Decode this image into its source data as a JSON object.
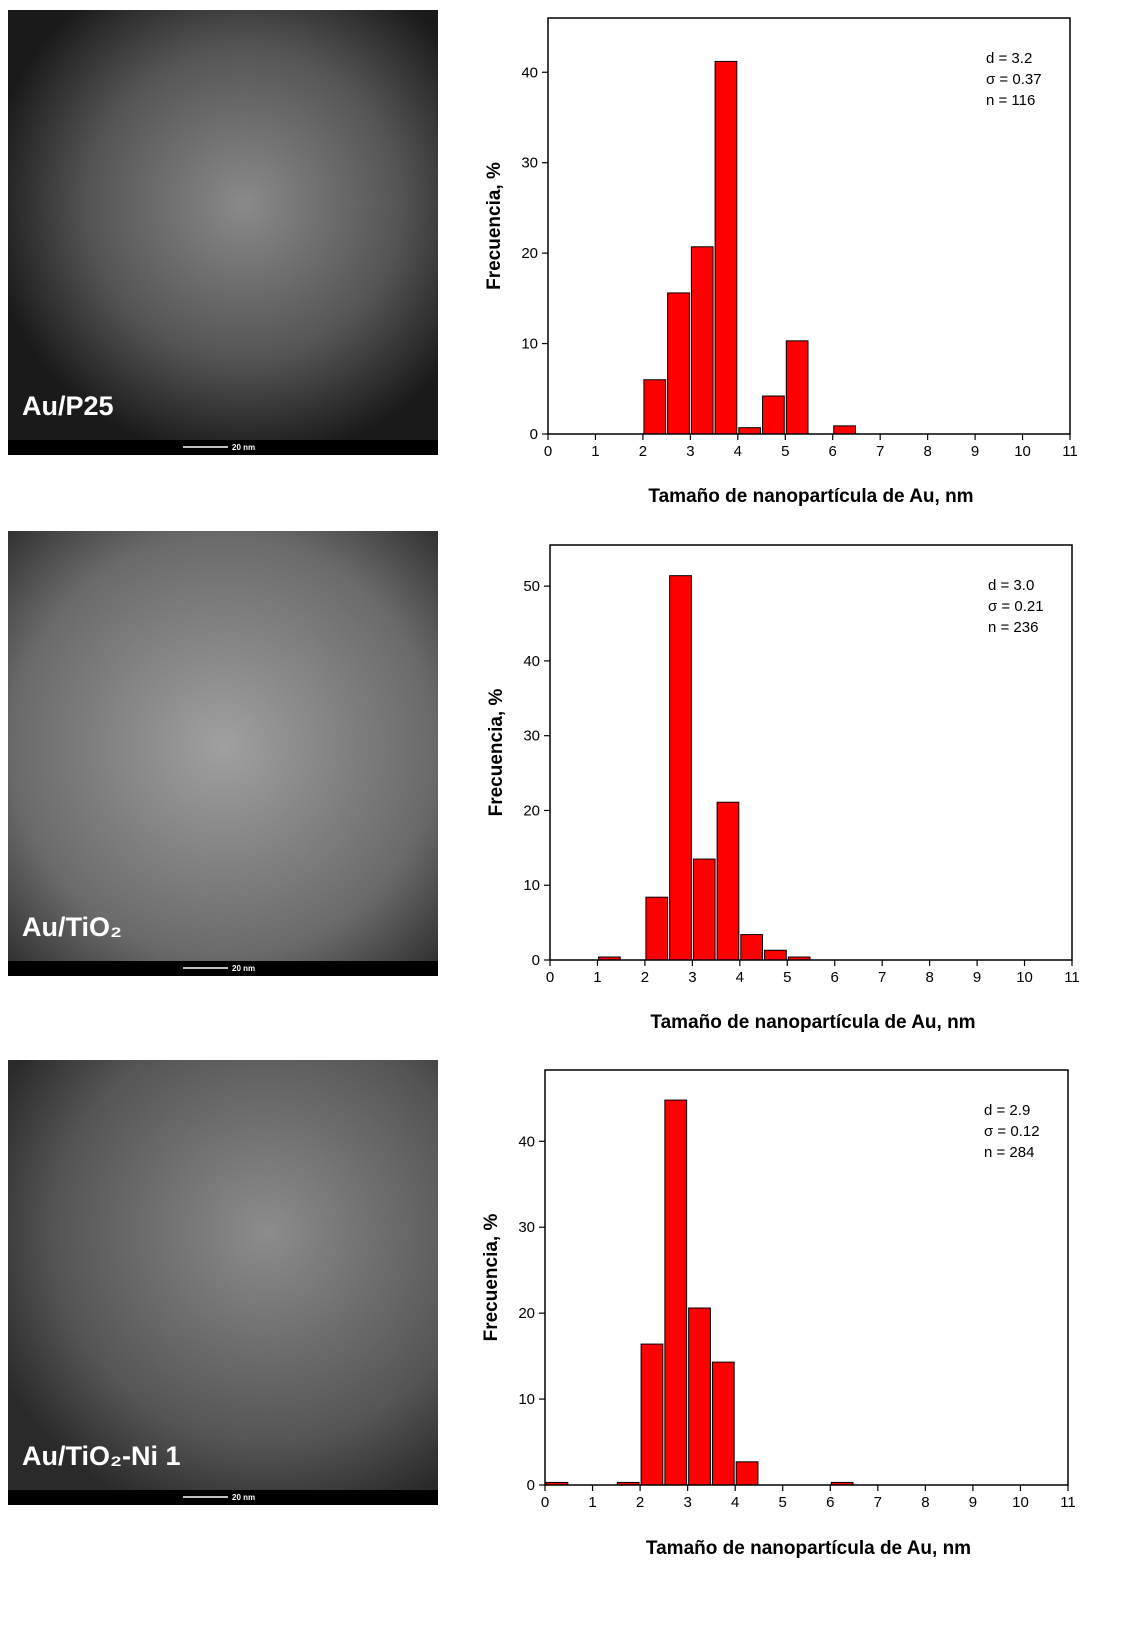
{
  "images": [
    {
      "label": "Au/P25",
      "scale": "20 nm"
    },
    {
      "label": "Au/TiO₂",
      "scale": "20 nm"
    },
    {
      "label": "Au/TiO₂-Ni 1",
      "scale": "20 nm"
    }
  ],
  "chart_data": [
    {
      "type": "histogram",
      "xlabel": "Tamaño de nanopartícula de Au, nm",
      "ylabel": "Frecuencia, %",
      "annotations": [
        "d = 3.2",
        "σ = 0.37",
        "n = 116"
      ],
      "color": "#ff0000",
      "bins": [
        2,
        2.5,
        3,
        3.5,
        4,
        4.5,
        5,
        5.5,
        6,
        6.5
      ],
      "values": [
        6,
        15.6,
        20.7,
        41.2,
        0.7,
        4.2,
        10.3,
        0,
        0.9
      ],
      "xlim": [
        0,
        11
      ],
      "xticks": [
        0,
        1,
        2,
        3,
        4,
        5,
        6,
        7,
        8,
        9,
        10,
        11
      ],
      "ylim": [
        0,
        46
      ],
      "yticks": [
        0,
        10,
        20,
        30,
        40
      ]
    },
    {
      "type": "histogram",
      "xlabel": "Tamaño de nanopartícula de Au, nm",
      "ylabel": "Frecuencia, %",
      "annotations": [
        "d = 3.0",
        "σ = 0.21",
        "n = 236"
      ],
      "color": "#ff0000",
      "bins": [
        1,
        1.5,
        2,
        2.5,
        3,
        3.5,
        4,
        4.5,
        5,
        5.5
      ],
      "values": [
        0.4,
        0,
        8.4,
        51.4,
        13.5,
        21.1,
        3.4,
        1.3,
        0.4
      ],
      "xlim": [
        0,
        11
      ],
      "xticks": [
        0,
        1,
        2,
        3,
        4,
        5,
        6,
        7,
        8,
        9,
        10,
        11
      ],
      "ylim": [
        0,
        55.5
      ],
      "yticks": [
        0,
        10,
        20,
        30,
        40,
        50
      ]
    },
    {
      "type": "histogram",
      "xlabel": "Tamaño de nanopartícula de Au, nm",
      "ylabel": "Frecuencia, %",
      "annotations": [
        "d = 2.9",
        "σ = 0.12",
        "n = 284"
      ],
      "color": "#ff0000",
      "bins": [
        0,
        0.5,
        1,
        1.5,
        2,
        2.5,
        3,
        3.5,
        4,
        4.5,
        5,
        5.5,
        6,
        6.5
      ],
      "values": [
        0.3,
        0,
        0,
        0.3,
        16.4,
        44.8,
        20.6,
        14.3,
        2.7,
        0,
        0,
        0,
        0.3
      ],
      "xlim": [
        0,
        11
      ],
      "xticks": [
        0,
        1,
        2,
        3,
        4,
        5,
        6,
        7,
        8,
        9,
        10,
        11
      ],
      "ylim": [
        0,
        48.3
      ],
      "yticks": [
        0,
        10,
        20,
        30,
        40
      ]
    }
  ]
}
